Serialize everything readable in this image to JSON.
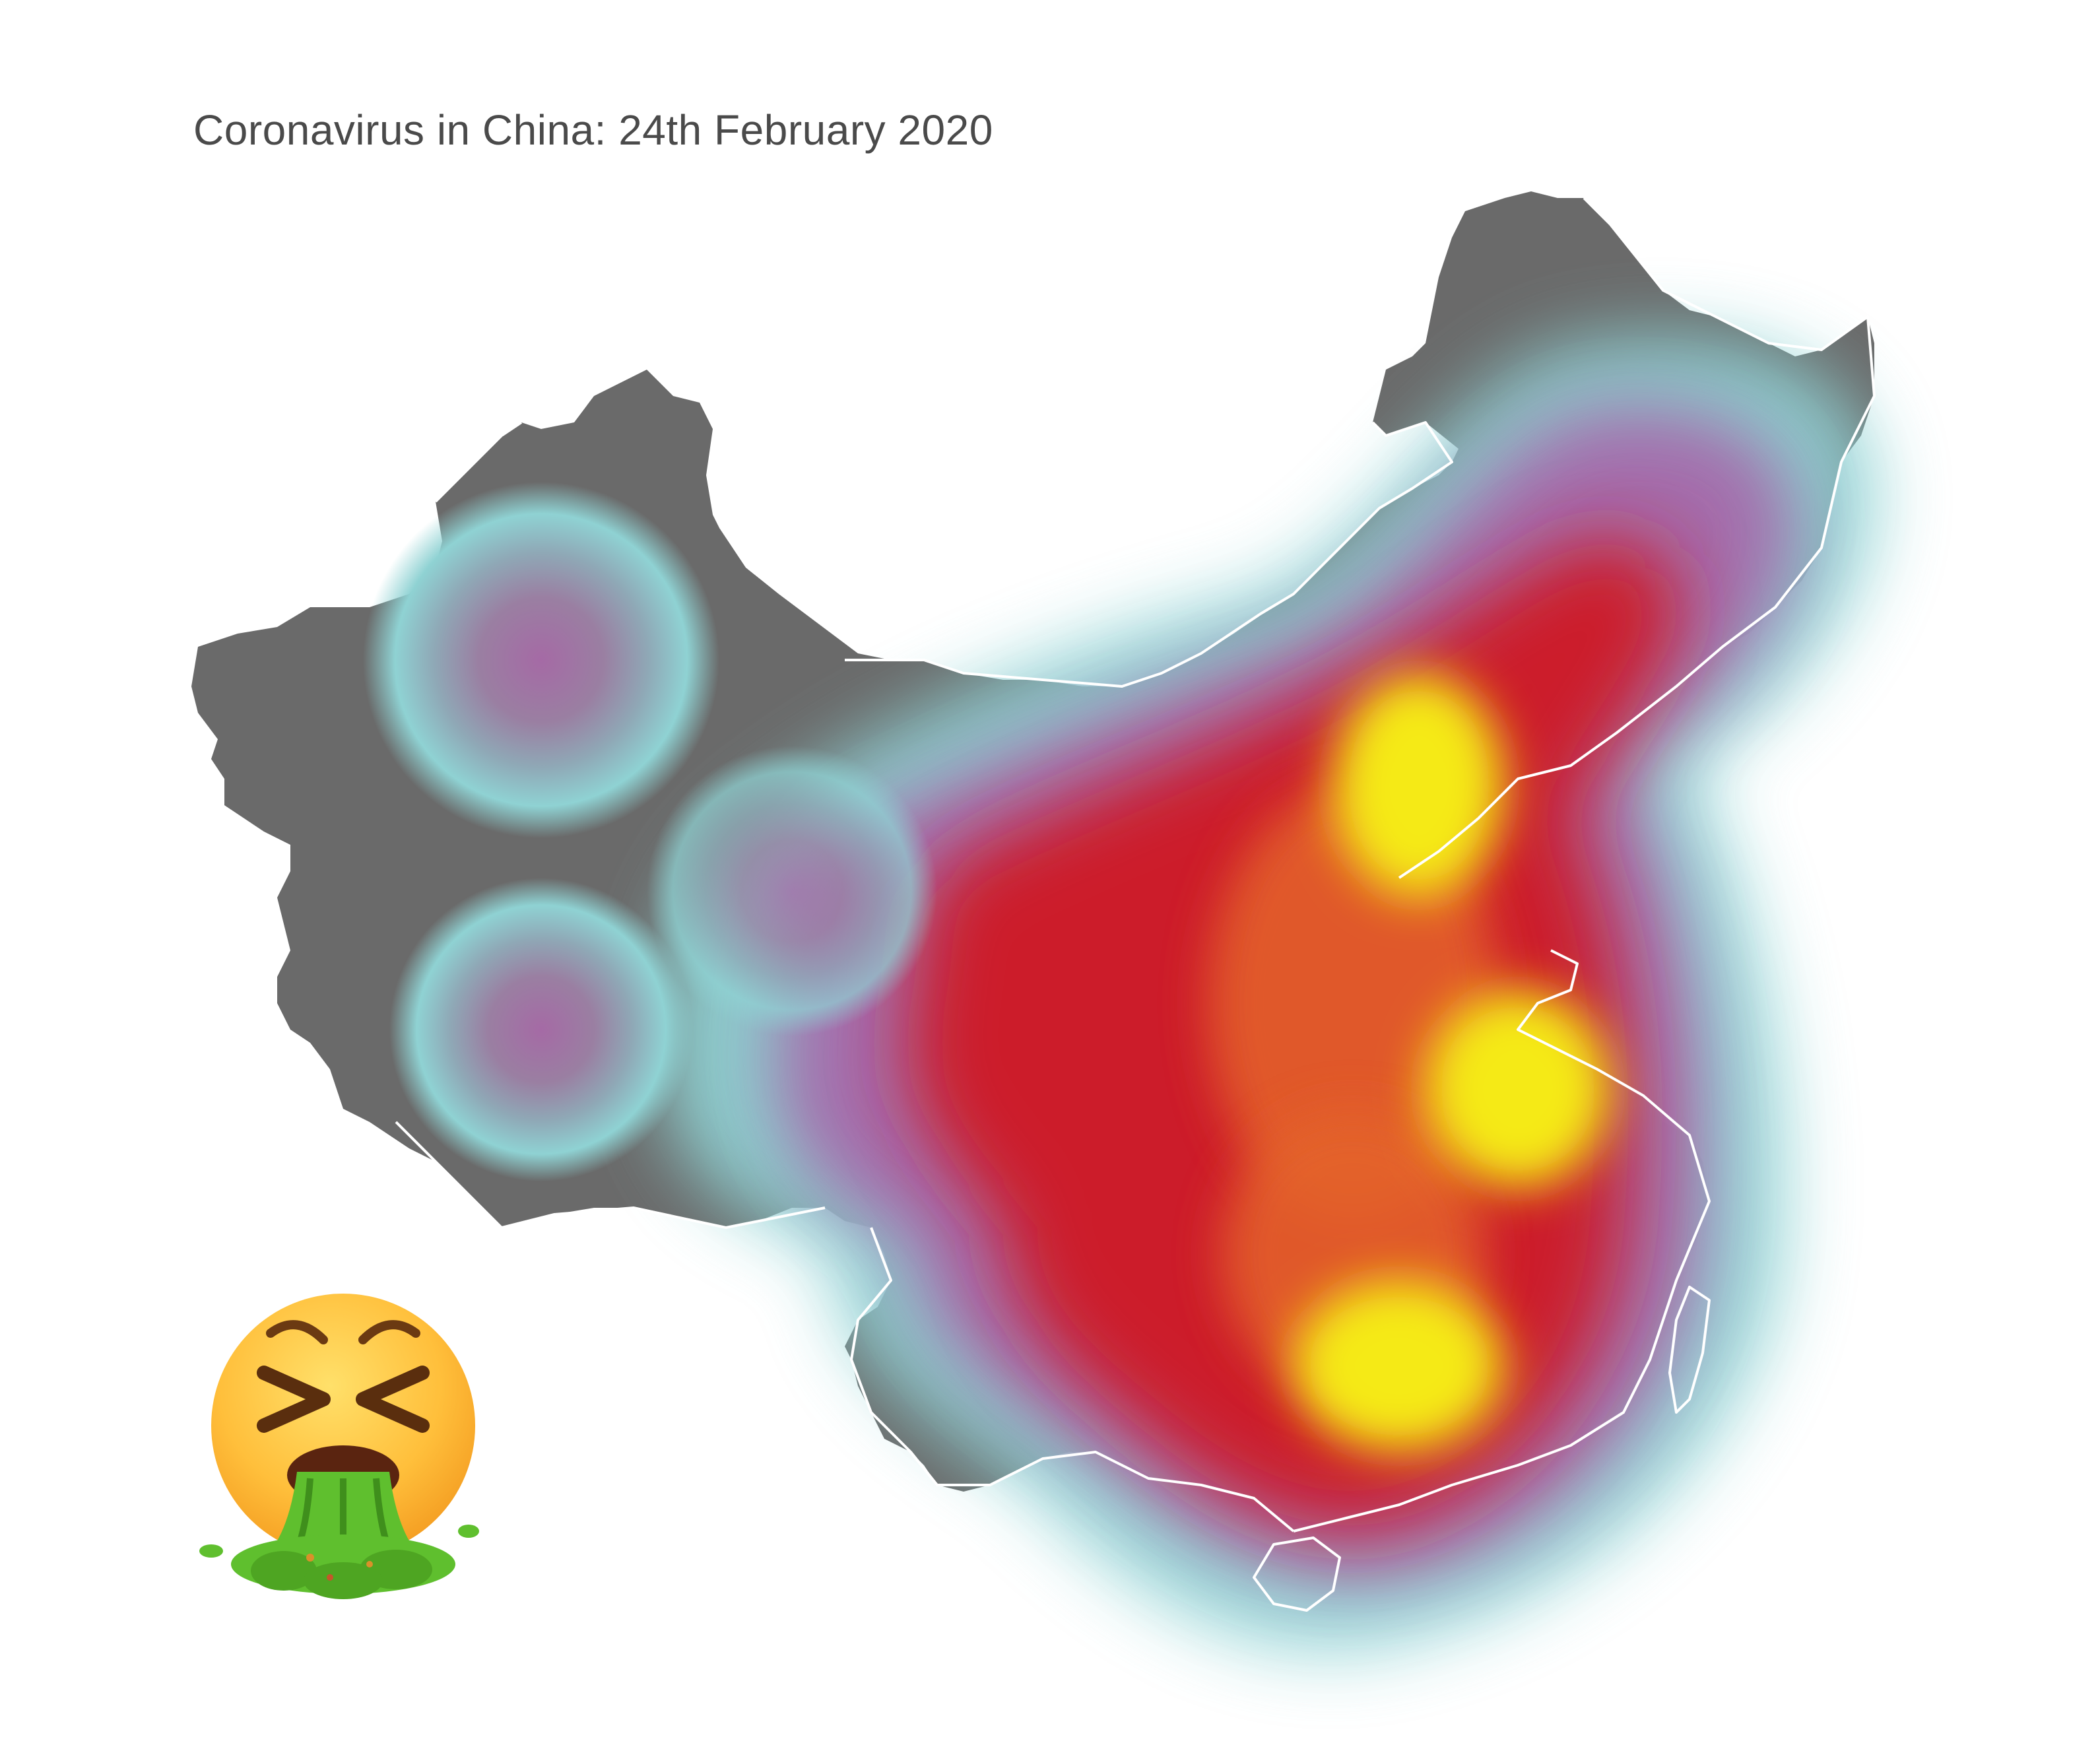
{
  "title": "Coronavirus in China: 24th February 2020",
  "map": {
    "region": "China",
    "kind": "heatmap",
    "colors": {
      "land": "#6a6a6a",
      "border": "#ffffff",
      "background": "#ffffff",
      "scale": [
        "#8fd0d2",
        "#a85fa6",
        "#cc1f2a",
        "#e4632a",
        "#f5e91b"
      ]
    }
  },
  "emoji": {
    "icon": "face-vomiting-icon"
  }
}
